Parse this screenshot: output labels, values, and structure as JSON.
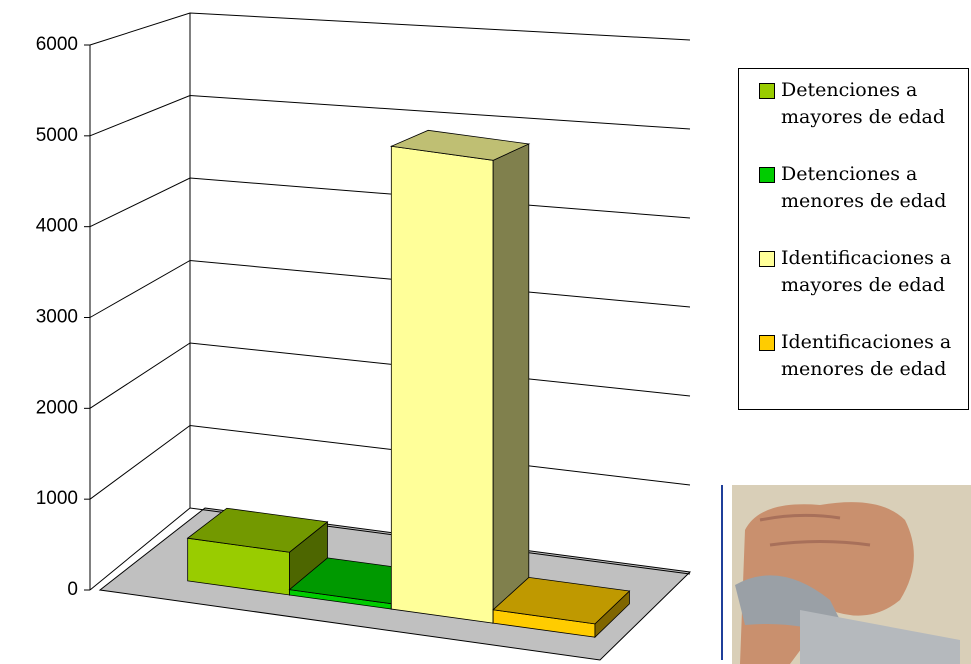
{
  "chart_data": {
    "type": "bar3d",
    "series": [
      {
        "name": "Detenciones a mayores de edad",
        "color": "#99cc00",
        "values": [
          480
        ]
      },
      {
        "name": "Detenciones a menores de edad",
        "color": "#00cc00",
        "values": [
          60
        ]
      },
      {
        "name": "Identificaciones a mayores de edad",
        "color": "#ffff99",
        "values": [
          5200
        ]
      },
      {
        "name": "Identificaciones a menores de edad",
        "color": "#ffcc00",
        "values": [
          150
        ]
      }
    ],
    "ylim": [
      0,
      6000
    ],
    "yticks": [
      0,
      1000,
      2000,
      3000,
      4000,
      5000,
      6000
    ],
    "grid": true,
    "legend": "right"
  }
}
